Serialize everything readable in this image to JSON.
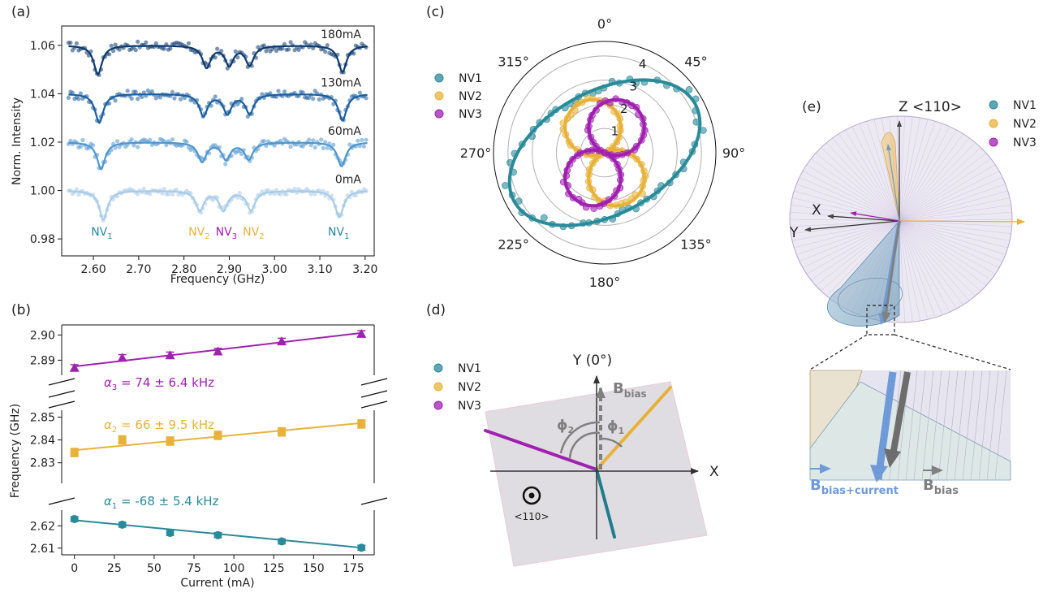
{
  "panels": {
    "a": "(a)",
    "b": "(b)",
    "c": "(c)",
    "d": "(d)",
    "e": "(e)"
  },
  "colors": {
    "NV1": "#2a8a9a",
    "NV2": "#e8b23a",
    "NV3": "#a020b0",
    "bias": "#808080",
    "current": "#6f9ad8"
  },
  "chart_data": [
    {
      "panel": "a",
      "type": "line",
      "xlabel": "Frequency (GHz)",
      "ylabel": "Norm. Intensity",
      "xlim": [
        2.53,
        3.22
      ],
      "ylim": [
        0.973,
        1.068
      ],
      "xticks": [
        2.6,
        2.7,
        2.8,
        2.9,
        3.0,
        3.1,
        3.2
      ],
      "xtick_labels": [
        "2.60",
        "2.70",
        "2.80",
        "2.90",
        "3.00",
        "3.10",
        "3.20"
      ],
      "yticks": [
        0.98,
        1.0,
        1.02,
        1.04,
        1.06
      ],
      "ytick_labels": [
        "0.98",
        "1.00",
        "1.02",
        "1.04",
        "1.06"
      ],
      "series": [
        {
          "name": "180mA",
          "baseline": 1.06,
          "color": "#0d3a6e",
          "dips": [
            {
              "x": 2.61,
              "depth": 0.012
            },
            {
              "x": 2.85,
              "depth": 0.009
            },
            {
              "x": 2.9,
              "depth": 0.008
            },
            {
              "x": 2.945,
              "depth": 0.008
            },
            {
              "x": 3.15,
              "depth": 0.011
            }
          ]
        },
        {
          "name": "130mA",
          "baseline": 1.04,
          "color": "#1b5fa0",
          "dips": [
            {
              "x": 2.613,
              "depth": 0.012
            },
            {
              "x": 2.843,
              "depth": 0.009
            },
            {
              "x": 2.896,
              "depth": 0.008
            },
            {
              "x": 2.945,
              "depth": 0.008
            },
            {
              "x": 3.15,
              "depth": 0.011
            }
          ]
        },
        {
          "name": "60mA",
          "baseline": 1.02,
          "color": "#4e96cf",
          "dips": [
            {
              "x": 2.617,
              "depth": 0.011
            },
            {
              "x": 2.84,
              "depth": 0.008
            },
            {
              "x": 2.893,
              "depth": 0.007
            },
            {
              "x": 2.943,
              "depth": 0.007
            },
            {
              "x": 3.148,
              "depth": 0.01
            }
          ]
        },
        {
          "name": "0mA",
          "baseline": 1.0,
          "color": "#a8cbe6",
          "dips": [
            {
              "x": 2.622,
              "depth": 0.012
            },
            {
              "x": 2.835,
              "depth": 0.008
            },
            {
              "x": 2.887,
              "depth": 0.008
            },
            {
              "x": 2.948,
              "depth": 0.008
            },
            {
              "x": 3.143,
              "depth": 0.011
            }
          ]
        }
      ],
      "annotations": [
        {
          "base": "NV",
          "sub": "1",
          "x": 2.62,
          "color": "NV1"
        },
        {
          "base": "NV",
          "sub": "2",
          "x": 2.835,
          "color": "NV2"
        },
        {
          "base": "NV",
          "sub": "3",
          "x": 2.895,
          "color": "NV3"
        },
        {
          "base": "NV",
          "sub": "2",
          "x": 2.955,
          "color": "NV2"
        },
        {
          "base": "NV",
          "sub": "1",
          "x": 3.143,
          "color": "NV1"
        }
      ]
    },
    {
      "panel": "b",
      "type": "scatter",
      "xlabel": "Current (mA)",
      "ylabel": "Frequency (GHz)",
      "xlim": [
        -8,
        188
      ],
      "xticks": [
        0,
        25,
        50,
        75,
        100,
        125,
        150,
        175
      ],
      "segments": [
        {
          "ylim": [
            2.884,
            2.904
          ],
          "yticks": [
            2.89,
            2.9
          ],
          "ytick_labels": [
            "2.89",
            "2.90"
          ]
        },
        {
          "ylim": [
            2.821,
            2.853
          ],
          "yticks": [
            2.83,
            2.84,
            2.85
          ],
          "ytick_labels": [
            "2.83",
            "2.84",
            "2.85"
          ]
        },
        {
          "ylim": [
            2.607,
            2.627
          ],
          "yticks": [
            2.61,
            2.62
          ],
          "ytick_labels": [
            "2.61",
            "2.62"
          ]
        }
      ],
      "series": [
        {
          "name": "α3",
          "segment": 0,
          "color": "NV3",
          "marker": "triangle",
          "x": [
            0,
            30,
            60,
            90,
            130,
            180
          ],
          "y": [
            2.887,
            2.891,
            2.892,
            2.8935,
            2.8975,
            2.9005
          ],
          "err": [
            0.0012,
            0.0012,
            0.0012,
            0.0012,
            0.0012,
            0.0012
          ],
          "fit": [
            2.8875,
            2.9008
          ],
          "label": {
            "sym": "α",
            "sub": "3",
            "text": " = 74 ± 6.4 kHz"
          }
        },
        {
          "name": "α2",
          "segment": 1,
          "color": "NV2",
          "marker": "square",
          "x": [
            0,
            30,
            60,
            90,
            130,
            180
          ],
          "y": [
            2.8345,
            2.84,
            2.8395,
            2.842,
            2.8435,
            2.847
          ],
          "err": [
            0.0018,
            0.0018,
            0.0018,
            0.0018,
            0.0018,
            0.0018
          ],
          "fit": [
            2.8355,
            2.8474
          ],
          "label": {
            "sym": "α",
            "sub": "2",
            "text": " = 66 ± 9.5 kHz"
          }
        },
        {
          "name": "α1",
          "segment": 2,
          "color": "NV1",
          "marker": "circle",
          "x": [
            0,
            30,
            60,
            90,
            130,
            180
          ],
          "y": [
            2.623,
            2.6205,
            2.6168,
            2.6158,
            2.613,
            2.6102
          ],
          "err": [
            0.0011,
            0.0011,
            0.0011,
            0.0011,
            0.0011,
            0.0011
          ],
          "fit": [
            2.6225,
            2.6102
          ],
          "label": {
            "sym": "α",
            "sub": "1",
            "text": " = -68 ± 5.4 kHz"
          }
        }
      ]
    },
    {
      "panel": "c",
      "type": "scatter",
      "polar": true,
      "angle_labels": [
        "0°",
        "45°",
        "90°",
        "135°",
        "180°",
        "225°",
        "270°",
        "315°"
      ],
      "angles": [
        0,
        45,
        90,
        135,
        180,
        225,
        270,
        315
      ],
      "rmax": 4.6,
      "rings": [
        1,
        2,
        3,
        4
      ],
      "ring_labels": [
        "1",
        "2",
        "3",
        "4"
      ],
      "legend": [
        "NV1",
        "NV2",
        "NV3"
      ],
      "series": [
        {
          "name": "NV1",
          "color": "NV1",
          "model": {
            "a": 4.25,
            "b": 2.55,
            "phi": 62
          }
        },
        {
          "name": "NV2",
          "color": "NV2",
          "model": {
            "a": 2.3,
            "phi": 155
          }
        },
        {
          "name": "NV3",
          "color": "NV3",
          "model": {
            "a": 2.3,
            "phi": 25
          }
        }
      ]
    }
  ],
  "diagram_d": {
    "legend": [
      "NV1",
      "NV2",
      "NV3"
    ],
    "y_axis": "Y (0°)",
    "x_axis": "X",
    "b_bias": {
      "base": "B",
      "sub": "bias"
    },
    "phi1": {
      "base": "ϕ",
      "sub": "1"
    },
    "phi2": {
      "base": "ϕ",
      "sub": "2"
    },
    "z_dir": "<110>"
  },
  "diagram_e": {
    "legend": [
      "NV1",
      "NV2",
      "NV3"
    ],
    "z_axis": "Z <110>",
    "x_axis": "X",
    "y_axis": "Y",
    "b_bias_current": {
      "base": "B",
      "sub": "bias+current"
    },
    "b_bias": {
      "base": "B",
      "sub": "bias"
    }
  }
}
